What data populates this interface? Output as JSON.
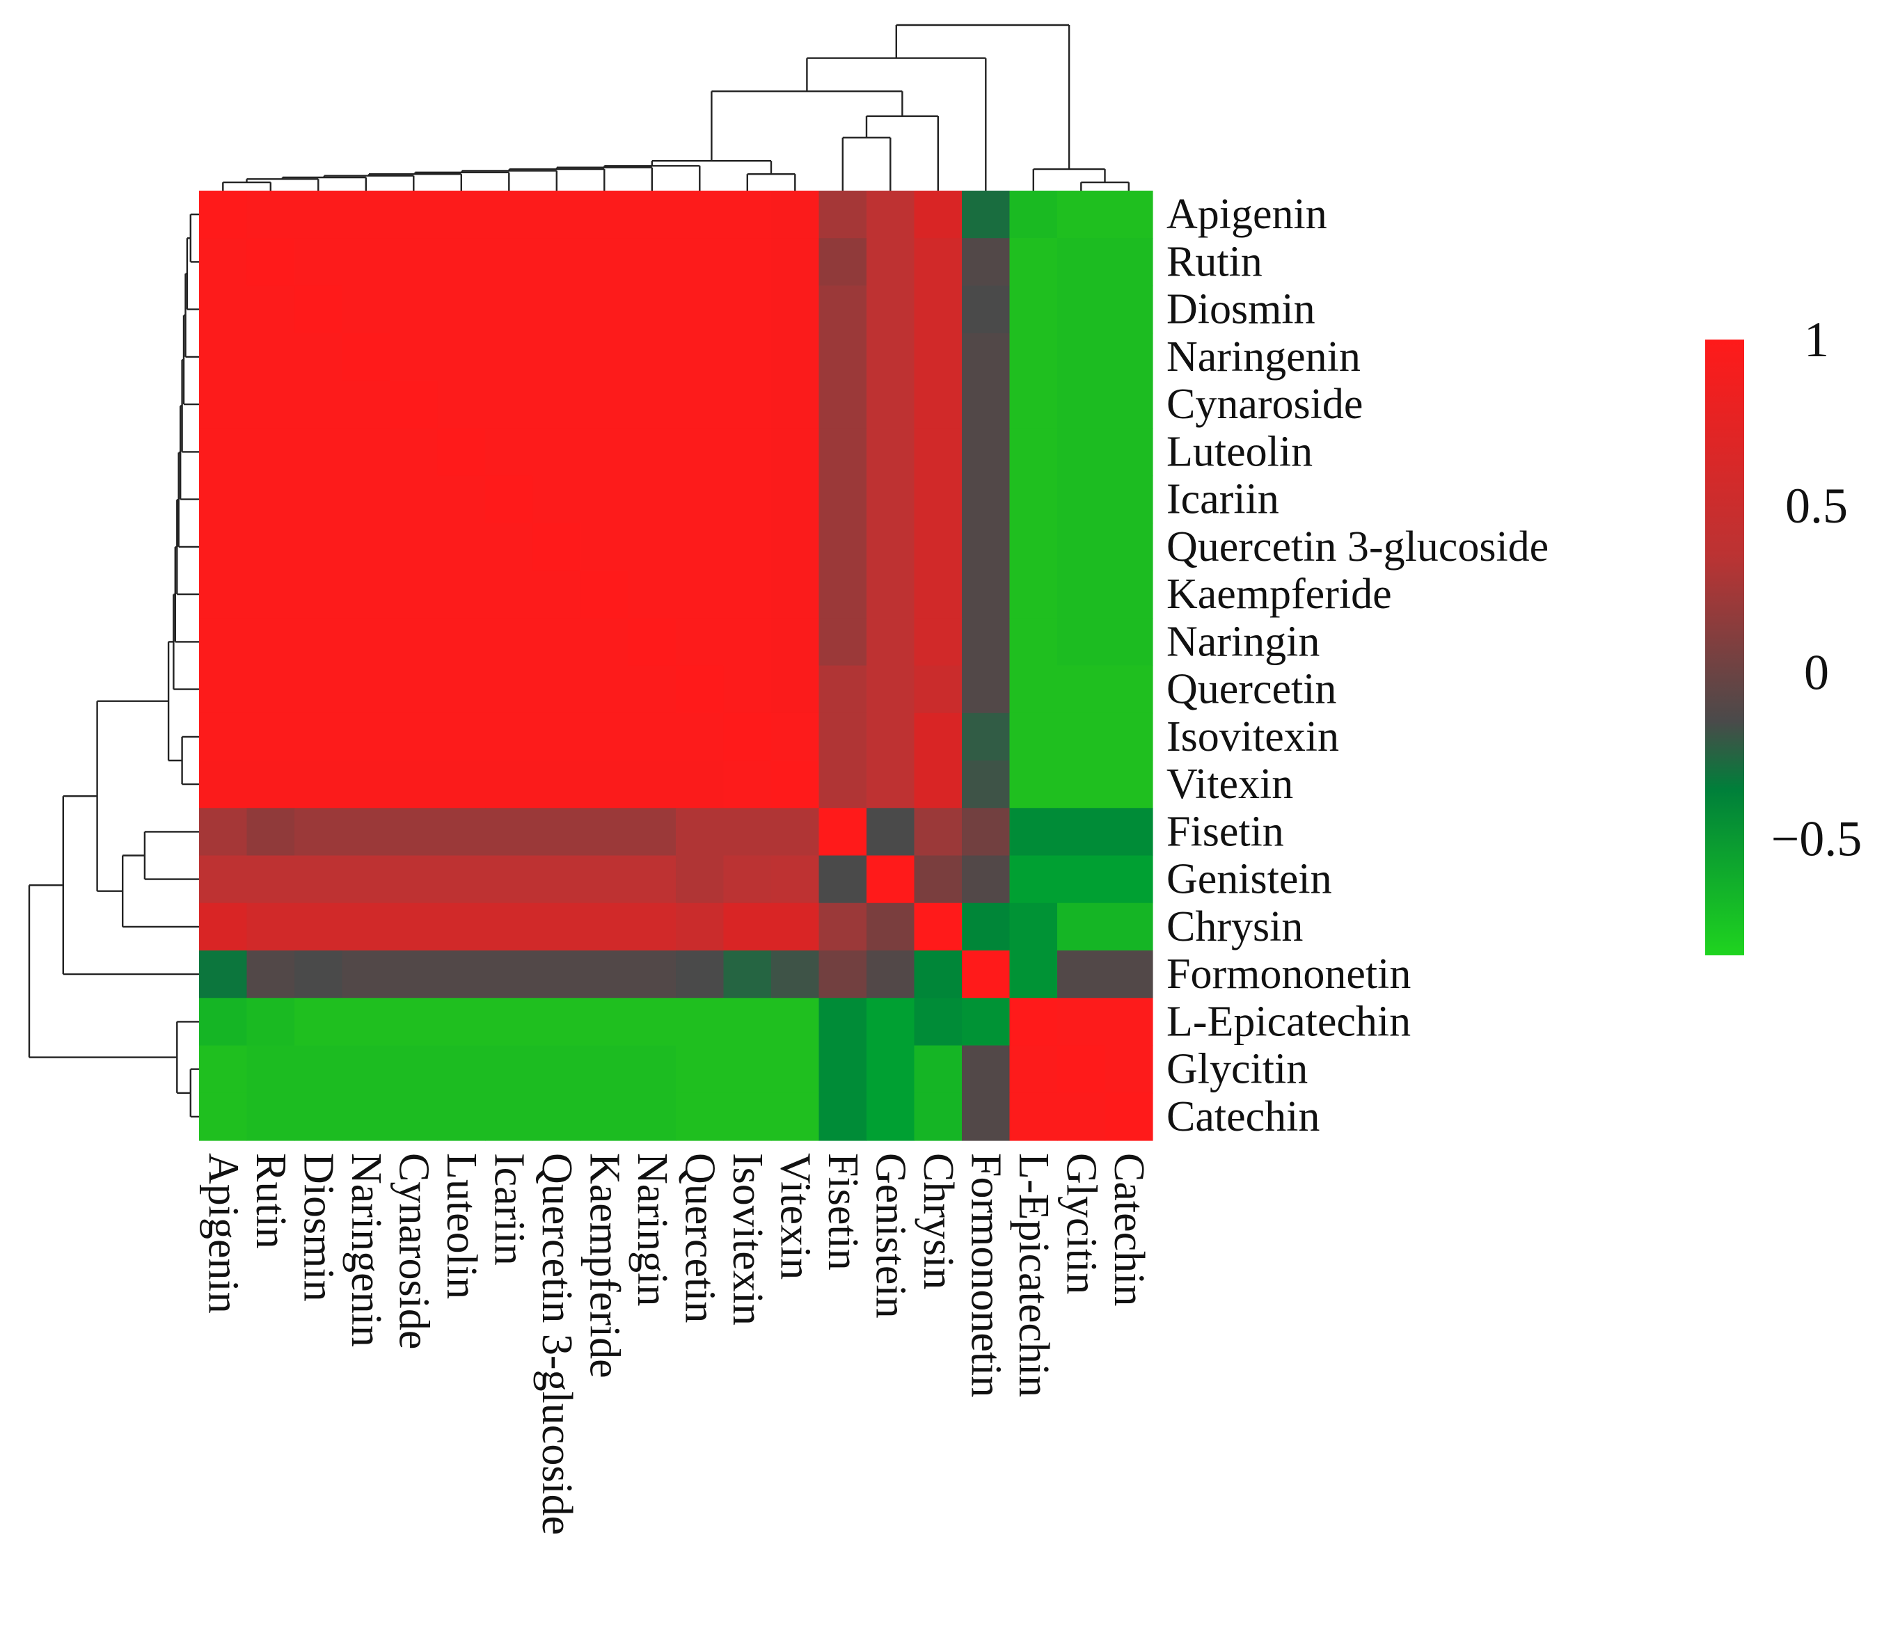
{
  "chart_data": {
    "type": "heatmap",
    "title": "",
    "xlabel": "",
    "ylabel": "",
    "labels": [
      "Apigenin",
      "Rutin",
      "Diosmin",
      "Naringenin",
      "Cynaroside",
      "Luteolin",
      "Icariin",
      "Quercetin 3-glucoside",
      "Kaempferide",
      "Naringin",
      "Quercetin",
      "Isovitexin",
      "Vitexin",
      "Fisetin",
      "Genistein",
      "Chrysin",
      "Formononetin",
      "L-Epicatechin",
      "Glycitin",
      "Catechin"
    ],
    "values": [
      [
        1.0,
        0.99,
        0.99,
        0.99,
        0.99,
        0.99,
        0.99,
        0.99,
        0.99,
        0.99,
        0.99,
        0.99,
        0.98,
        0.5,
        0.62,
        0.8,
        -0.2,
        -0.8,
        -0.85,
        -0.85
      ],
      [
        0.99,
        1.0,
        0.99,
        0.99,
        0.99,
        0.99,
        0.99,
        0.99,
        0.99,
        0.99,
        0.99,
        0.99,
        0.98,
        0.4,
        0.62,
        0.75,
        0.05,
        -0.85,
        -0.82,
        -0.82
      ],
      [
        0.99,
        0.99,
        1.0,
        0.99,
        0.99,
        0.99,
        0.99,
        0.99,
        0.99,
        0.99,
        0.99,
        0.99,
        0.98,
        0.45,
        0.62,
        0.75,
        0.0,
        -0.85,
        -0.82,
        -0.82
      ],
      [
        0.99,
        0.99,
        0.99,
        1.0,
        0.99,
        0.99,
        0.99,
        0.99,
        0.99,
        0.99,
        0.99,
        0.99,
        0.98,
        0.45,
        0.62,
        0.75,
        0.05,
        -0.85,
        -0.82,
        -0.82
      ],
      [
        0.99,
        0.99,
        0.99,
        0.99,
        1.0,
        0.99,
        0.99,
        0.99,
        0.99,
        0.99,
        0.99,
        0.99,
        0.98,
        0.45,
        0.62,
        0.75,
        0.05,
        -0.85,
        -0.82,
        -0.82
      ],
      [
        0.99,
        0.99,
        0.99,
        0.99,
        0.99,
        1.0,
        0.99,
        0.99,
        0.99,
        0.99,
        0.99,
        0.99,
        0.98,
        0.45,
        0.62,
        0.75,
        0.05,
        -0.85,
        -0.82,
        -0.82
      ],
      [
        0.99,
        0.99,
        0.99,
        0.99,
        0.99,
        0.99,
        1.0,
        0.99,
        0.99,
        0.99,
        0.99,
        0.99,
        0.98,
        0.45,
        0.62,
        0.75,
        0.05,
        -0.85,
        -0.82,
        -0.82
      ],
      [
        0.99,
        0.99,
        0.99,
        0.99,
        0.99,
        0.99,
        0.99,
        1.0,
        0.99,
        0.99,
        0.99,
        0.99,
        0.98,
        0.45,
        0.62,
        0.75,
        0.05,
        -0.85,
        -0.82,
        -0.82
      ],
      [
        0.99,
        0.99,
        0.99,
        0.99,
        0.99,
        0.99,
        0.99,
        0.99,
        1.0,
        0.99,
        0.99,
        0.99,
        0.98,
        0.45,
        0.62,
        0.75,
        0.05,
        -0.85,
        -0.82,
        -0.82
      ],
      [
        0.99,
        0.99,
        0.99,
        0.99,
        0.99,
        0.99,
        0.99,
        0.99,
        0.99,
        1.0,
        0.99,
        0.99,
        0.98,
        0.45,
        0.62,
        0.75,
        0.05,
        -0.85,
        -0.82,
        -0.82
      ],
      [
        0.99,
        0.99,
        0.99,
        0.99,
        0.99,
        0.99,
        0.99,
        0.99,
        0.99,
        0.99,
        1.0,
        0.99,
        0.98,
        0.55,
        0.62,
        0.7,
        0.05,
        -0.85,
        -0.85,
        -0.85
      ],
      [
        0.99,
        0.99,
        0.99,
        0.99,
        0.99,
        0.99,
        0.99,
        0.99,
        0.99,
        0.99,
        0.99,
        1.0,
        0.99,
        0.55,
        0.62,
        0.8,
        -0.1,
        -0.85,
        -0.85,
        -0.85
      ],
      [
        0.98,
        0.98,
        0.98,
        0.98,
        0.98,
        0.98,
        0.98,
        0.98,
        0.98,
        0.98,
        0.98,
        0.99,
        1.0,
        0.55,
        0.62,
        0.8,
        -0.05,
        -0.85,
        -0.85,
        -0.85
      ],
      [
        0.5,
        0.4,
        0.45,
        0.45,
        0.45,
        0.45,
        0.45,
        0.45,
        0.45,
        0.45,
        0.55,
        0.55,
        0.55,
        1.0,
        0.0,
        0.45,
        0.25,
        -0.4,
        -0.4,
        -0.4
      ],
      [
        0.62,
        0.62,
        0.62,
        0.62,
        0.62,
        0.62,
        0.62,
        0.62,
        0.62,
        0.62,
        0.55,
        0.6,
        0.62,
        0.0,
        1.0,
        0.3,
        0.05,
        -0.55,
        -0.55,
        -0.55
      ],
      [
        0.8,
        0.75,
        0.75,
        0.75,
        0.75,
        0.75,
        0.75,
        0.75,
        0.75,
        0.75,
        0.7,
        0.8,
        0.8,
        0.45,
        0.3,
        1.0,
        -0.35,
        -0.45,
        -0.75,
        -0.75
      ],
      [
        -0.25,
        0.05,
        0.0,
        0.05,
        0.05,
        0.05,
        0.05,
        0.05,
        0.05,
        0.05,
        0.0,
        -0.15,
        -0.05,
        0.25,
        0.05,
        -0.35,
        1.0,
        -0.45,
        0.05,
        0.05
      ],
      [
        -0.75,
        -0.8,
        -0.85,
        -0.85,
        -0.85,
        -0.85,
        -0.85,
        -0.85,
        -0.85,
        -0.85,
        -0.85,
        -0.85,
        -0.85,
        -0.4,
        -0.55,
        -0.4,
        -0.45,
        1.0,
        0.99,
        0.99
      ],
      [
        -0.85,
        -0.82,
        -0.82,
        -0.82,
        -0.82,
        -0.82,
        -0.82,
        -0.82,
        -0.82,
        -0.82,
        -0.85,
        -0.85,
        -0.85,
        -0.4,
        -0.55,
        -0.75,
        0.05,
        0.99,
        1.0,
        0.99
      ],
      [
        -0.85,
        -0.82,
        -0.82,
        -0.82,
        -0.82,
        -0.82,
        -0.82,
        -0.82,
        -0.82,
        -0.82,
        -0.85,
        -0.85,
        -0.85,
        -0.4,
        -0.55,
        -0.75,
        0.05,
        0.99,
        0.99,
        1.0
      ]
    ],
    "colorbar": {
      "ticks": [
        "1",
        "0.5",
        "0",
        "−0.5"
      ],
      "tick_values": [
        1,
        0.5,
        0,
        -0.5
      ],
      "range": [
        -0.85,
        1.0
      ],
      "colors": {
        "high": "#ff1a1a",
        "mid_red": "#bb3333",
        "zero": "#4a4a4a",
        "low_dark_green": "#007f3a",
        "low": "#1fbf1f"
      }
    },
    "legend_position": "right",
    "grid": false
  }
}
